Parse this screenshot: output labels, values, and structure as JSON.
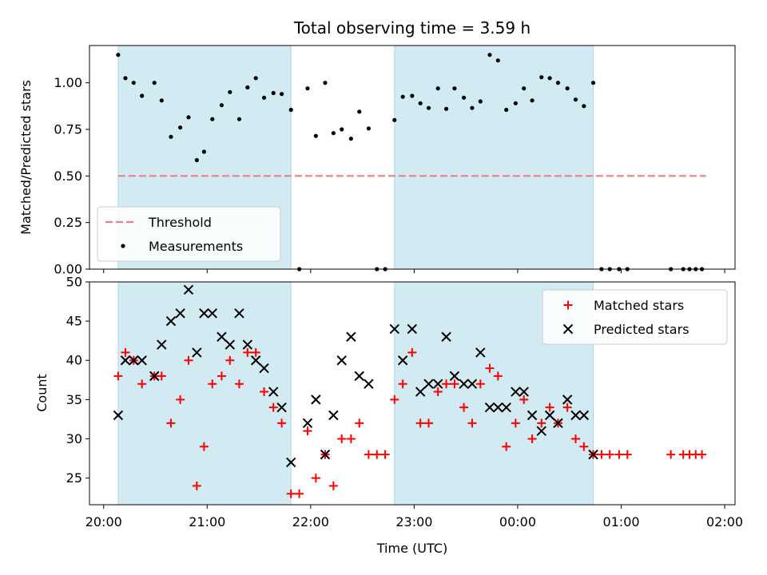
{
  "chart_data": {
    "type": "scatter",
    "title": "Total observing time = 3.59 h",
    "xlabel": "Time (UTC)",
    "x_ticks": [
      "20:00",
      "21:00",
      "22:00",
      "23:00",
      "00:00",
      "01:00",
      "02:00"
    ],
    "x_tick_hours": [
      0,
      1,
      2,
      3,
      4,
      5,
      6
    ],
    "xlim_hours": [
      -0.137,
      6.1
    ],
    "shaded_intervals_hours": [
      [
        0.14,
        1.81
      ],
      [
        2.81,
        4.73
      ]
    ],
    "shade_color": "#add8e6",
    "panels": [
      {
        "id": "ratio",
        "ylabel": "Matched/Predicted stars",
        "ylim": [
          0,
          1.2
        ],
        "y_ticks": [
          "0.00",
          "0.25",
          "0.50",
          "0.75",
          "1.00"
        ],
        "y_tick_values": [
          0,
          0.25,
          0.5,
          0.75,
          1.0
        ],
        "legend_position": "lower-left",
        "threshold": {
          "name": "Threshold",
          "value": 0.5,
          "x_range_hours": [
            0.14,
            5.82
          ],
          "color": "#f08080"
        },
        "series": [
          {
            "name": "Measurements",
            "marker": "dot",
            "color": "#000000",
            "points": [
              [
                0.14,
                1.15
              ],
              [
                0.21,
                1.025
              ],
              [
                0.29,
                1.0
              ],
              [
                0.37,
                0.93
              ],
              [
                0.49,
                1.0
              ],
              [
                0.56,
                0.905
              ],
              [
                0.65,
                0.71
              ],
              [
                0.74,
                0.76
              ],
              [
                0.82,
                0.815
              ],
              [
                0.9,
                0.585
              ],
              [
                0.97,
                0.63
              ],
              [
                1.05,
                0.805
              ],
              [
                1.14,
                0.88
              ],
              [
                1.22,
                0.95
              ],
              [
                1.31,
                0.805
              ],
              [
                1.39,
                0.975
              ],
              [
                1.47,
                1.025
              ],
              [
                1.55,
                0.92
              ],
              [
                1.64,
                0.945
              ],
              [
                1.72,
                0.94
              ],
              [
                1.81,
                0.855
              ],
              [
                1.89,
                0.0
              ],
              [
                1.97,
                0.97
              ],
              [
                2.05,
                0.715
              ],
              [
                2.14,
                1.0
              ],
              [
                2.22,
                0.73
              ],
              [
                2.3,
                0.75
              ],
              [
                2.39,
                0.7
              ],
              [
                2.47,
                0.845
              ],
              [
                2.56,
                0.755
              ],
              [
                2.64,
                0.0
              ],
              [
                2.72,
                0.0
              ],
              [
                2.81,
                0.8
              ],
              [
                2.89,
                0.925
              ],
              [
                2.98,
                0.93
              ],
              [
                3.06,
                0.89
              ],
              [
                3.14,
                0.865
              ],
              [
                3.23,
                0.97
              ],
              [
                3.31,
                0.86
              ],
              [
                3.39,
                0.97
              ],
              [
                3.48,
                0.92
              ],
              [
                3.56,
                0.865
              ],
              [
                3.64,
                0.9
              ],
              [
                3.73,
                1.15
              ],
              [
                3.81,
                1.12
              ],
              [
                3.89,
                0.855
              ],
              [
                3.98,
                0.89
              ],
              [
                4.06,
                0.97
              ],
              [
                4.14,
                0.905
              ],
              [
                4.23,
                1.03
              ],
              [
                4.31,
                1.025
              ],
              [
                4.39,
                1.0
              ],
              [
                4.48,
                0.97
              ],
              [
                4.56,
                0.91
              ],
              [
                4.64,
                0.875
              ],
              [
                4.73,
                1.0
              ],
              [
                4.81,
                0.0
              ],
              [
                4.89,
                0.0
              ],
              [
                4.98,
                0.0
              ],
              [
                5.06,
                0.0
              ],
              [
                5.48,
                0.0
              ],
              [
                5.6,
                0.0
              ],
              [
                5.66,
                0.0
              ],
              [
                5.72,
                0.0
              ],
              [
                5.78,
                0.0
              ]
            ]
          }
        ]
      },
      {
        "id": "count",
        "ylabel": "Count",
        "ylim": [
          21.6,
          50.0
        ],
        "y_ticks": [
          "25",
          "30",
          "35",
          "40",
          "45",
          "50"
        ],
        "y_tick_values": [
          25,
          30,
          35,
          40,
          45,
          50
        ],
        "legend_position": "upper-right",
        "series": [
          {
            "name": "Matched stars",
            "marker": "plus",
            "color": "#ff0000",
            "points": [
              [
                0.14,
                38
              ],
              [
                0.21,
                41
              ],
              [
                0.29,
                40
              ],
              [
                0.37,
                37
              ],
              [
                0.49,
                38
              ],
              [
                0.56,
                38
              ],
              [
                0.65,
                32
              ],
              [
                0.74,
                35
              ],
              [
                0.82,
                40
              ],
              [
                0.9,
                24
              ],
              [
                0.97,
                29
              ],
              [
                1.05,
                37
              ],
              [
                1.14,
                38
              ],
              [
                1.22,
                40
              ],
              [
                1.31,
                37
              ],
              [
                1.39,
                41
              ],
              [
                1.47,
                41
              ],
              [
                1.55,
                36
              ],
              [
                1.64,
                34
              ],
              [
                1.72,
                32
              ],
              [
                1.81,
                23
              ],
              [
                1.89,
                23
              ],
              [
                1.97,
                31
              ],
              [
                2.05,
                25
              ],
              [
                2.14,
                28
              ],
              [
                2.22,
                24
              ],
              [
                2.3,
                30
              ],
              [
                2.39,
                30
              ],
              [
                2.47,
                32
              ],
              [
                2.56,
                28
              ],
              [
                2.64,
                28
              ],
              [
                2.72,
                28
              ],
              [
                2.81,
                35
              ],
              [
                2.89,
                37
              ],
              [
                2.98,
                41
              ],
              [
                3.06,
                32
              ],
              [
                3.14,
                32
              ],
              [
                3.23,
                36
              ],
              [
                3.31,
                37
              ],
              [
                3.39,
                37
              ],
              [
                3.48,
                34
              ],
              [
                3.56,
                32
              ],
              [
                3.64,
                37
              ],
              [
                3.73,
                39
              ],
              [
                3.81,
                38
              ],
              [
                3.89,
                29
              ],
              [
                3.98,
                32
              ],
              [
                4.06,
                35
              ],
              [
                4.14,
                30
              ],
              [
                4.23,
                32
              ],
              [
                4.31,
                34
              ],
              [
                4.39,
                32
              ],
              [
                4.48,
                34
              ],
              [
                4.56,
                30
              ],
              [
                4.64,
                29
              ],
              [
                4.73,
                28
              ],
              [
                4.81,
                28
              ],
              [
                4.89,
                28
              ],
              [
                4.98,
                28
              ],
              [
                5.06,
                28
              ],
              [
                5.48,
                28
              ],
              [
                5.6,
                28
              ],
              [
                5.66,
                28
              ],
              [
                5.72,
                28
              ],
              [
                5.78,
                28
              ]
            ]
          },
          {
            "name": "Predicted stars",
            "marker": "x",
            "color": "#000000",
            "points": [
              [
                0.14,
                33
              ],
              [
                0.21,
                40
              ],
              [
                0.29,
                40
              ],
              [
                0.37,
                40
              ],
              [
                0.49,
                38
              ],
              [
                0.56,
                42
              ],
              [
                0.65,
                45
              ],
              [
                0.74,
                46
              ],
              [
                0.82,
                49
              ],
              [
                0.9,
                41
              ],
              [
                0.97,
                46
              ],
              [
                1.05,
                46
              ],
              [
                1.14,
                43
              ],
              [
                1.22,
                42
              ],
              [
                1.31,
                46
              ],
              [
                1.39,
                42
              ],
              [
                1.47,
                40
              ],
              [
                1.55,
                39
              ],
              [
                1.64,
                36
              ],
              [
                1.72,
                34
              ],
              [
                1.81,
                27
              ],
              [
                1.97,
                32
              ],
              [
                2.05,
                35
              ],
              [
                2.14,
                28
              ],
              [
                2.22,
                33
              ],
              [
                2.3,
                40
              ],
              [
                2.39,
                43
              ],
              [
                2.47,
                38
              ],
              [
                2.56,
                37
              ],
              [
                2.81,
                44
              ],
              [
                2.89,
                40
              ],
              [
                2.98,
                44
              ],
              [
                3.06,
                36
              ],
              [
                3.14,
                37
              ],
              [
                3.23,
                37
              ],
              [
                3.31,
                43
              ],
              [
                3.39,
                38
              ],
              [
                3.48,
                37
              ],
              [
                3.56,
                37
              ],
              [
                3.64,
                41
              ],
              [
                3.73,
                34
              ],
              [
                3.81,
                34
              ],
              [
                3.89,
                34
              ],
              [
                3.98,
                36
              ],
              [
                4.06,
                36
              ],
              [
                4.14,
                33
              ],
              [
                4.23,
                31
              ],
              [
                4.31,
                33
              ],
              [
                4.39,
                32
              ],
              [
                4.48,
                35
              ],
              [
                4.56,
                33
              ],
              [
                4.64,
                33
              ],
              [
                4.73,
                28
              ]
            ]
          }
        ]
      }
    ]
  }
}
